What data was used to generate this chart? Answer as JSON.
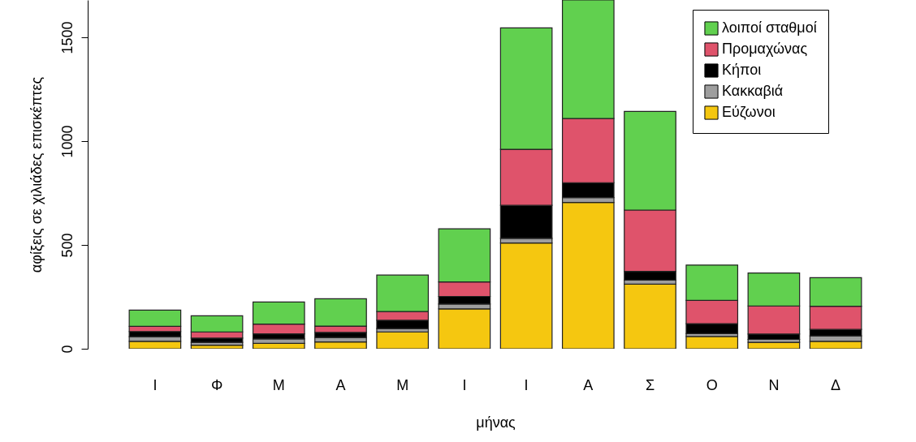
{
  "chart_data": {
    "type": "bar",
    "stacked": true,
    "xlabel": "μήνας",
    "ylabel": "αφίξεις σε χιλιάδες επισκέπτες",
    "categories": [
      "Ι",
      "Φ",
      "Μ",
      "Α",
      "Μ",
      "Ι",
      "Ι",
      "Α",
      "Σ",
      "Ο",
      "Ν",
      "Δ"
    ],
    "series": [
      {
        "name": "Εύζωνοι",
        "color": "#f5c710",
        "values": [
          36,
          17,
          26,
          33,
          81,
          192,
          509,
          705,
          311,
          59,
          31,
          36
        ]
      },
      {
        "name": "Κακκαβιά",
        "color": "#9e9e9e",
        "values": [
          22,
          14,
          21,
          21,
          16,
          23,
          23,
          23,
          20,
          14,
          14,
          26
        ]
      },
      {
        "name": "Κήποι",
        "color": "#000000",
        "values": [
          25,
          20,
          25,
          25,
          40,
          37,
          159,
          72,
          42,
          48,
          26,
          31
        ]
      },
      {
        "name": "Προμαχώνας",
        "color": "#df536b",
        "values": [
          25,
          30,
          47,
          30,
          42,
          70,
          270,
          309,
          295,
          112,
          135,
          112
        ]
      },
      {
        "name": "λοιποί σταθμοί",
        "color": "#61d04f",
        "values": [
          78,
          78,
          106,
          132,
          176,
          256,
          585,
          571,
          475,
          170,
          159,
          137
        ]
      }
    ],
    "ylim": [
      0,
      1680
    ],
    "yticks": [
      0,
      500,
      1000,
      1500
    ],
    "legend": "top right"
  }
}
